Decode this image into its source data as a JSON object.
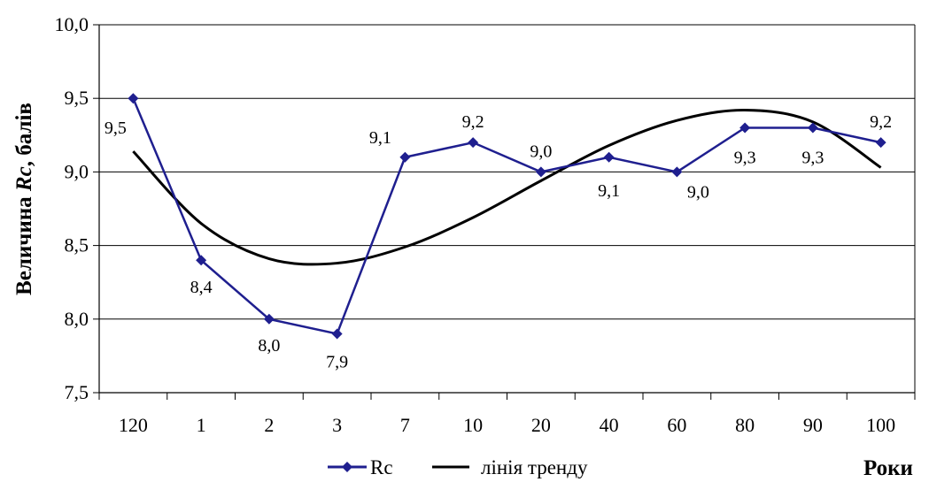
{
  "chart_data": {
    "type": "line",
    "categories": [
      "120",
      "1",
      "2",
      "3",
      "7",
      "10",
      "20",
      "40",
      "60",
      "80",
      "90",
      "100"
    ],
    "series": [
      {
        "name": "Rc",
        "values": [
          9.5,
          8.4,
          8.0,
          7.9,
          9.1,
          9.2,
          9.0,
          9.1,
          9.0,
          9.3,
          9.3,
          9.2
        ],
        "labels": [
          "9,5",
          "8,4",
          "8,0",
          "7,9",
          "9,1",
          "9,2",
          "9,0",
          "9,1",
          "9,0",
          "9,3",
          "9,3",
          "9,2"
        ],
        "color": "#1f1f8f",
        "marker": "diamond"
      },
      {
        "name": "лінія тренду",
        "type": "trendline",
        "values": [
          9.14,
          8.65,
          8.41,
          8.38,
          8.49,
          8.69,
          8.94,
          9.18,
          9.35,
          9.42,
          9.34,
          9.03
        ],
        "color": "#000000"
      }
    ],
    "yticks": [
      "7,5",
      "8,0",
      "8,5",
      "9,0",
      "9,5",
      "10,0"
    ],
    "ylim": [
      7.5,
      10.0
    ],
    "ylabel_parts": [
      "Величина ",
      "Rc",
      ", балів"
    ],
    "xlabel": "Роки",
    "grid": true,
    "legend": "bottom"
  }
}
